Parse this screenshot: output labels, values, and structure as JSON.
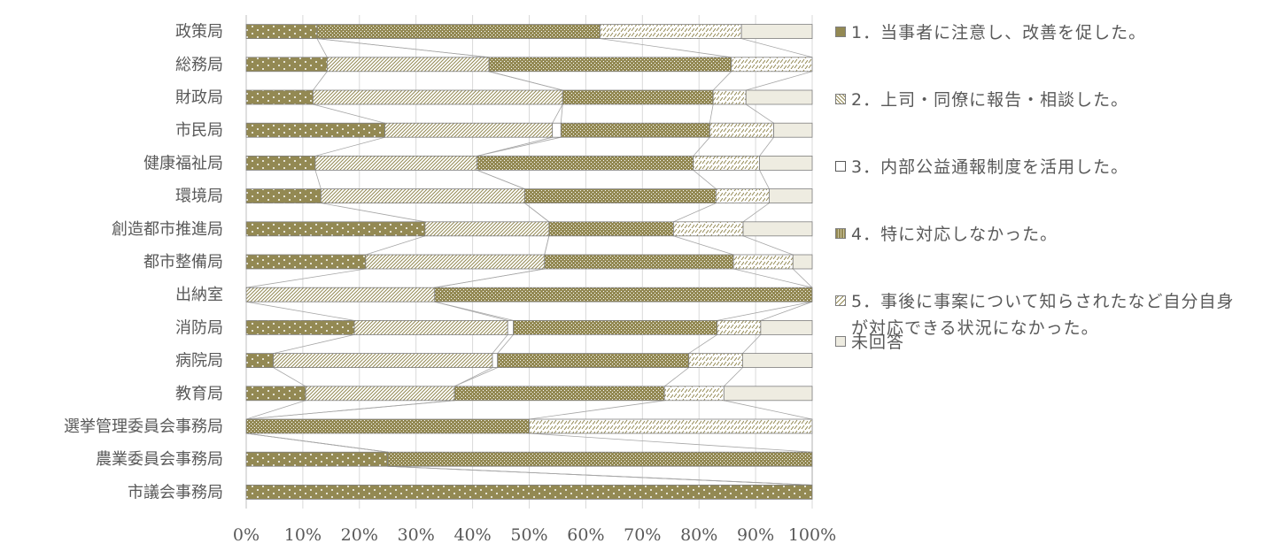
{
  "chart_data": {
    "type": "bar",
    "orientation": "horizontal",
    "stacked": "percent",
    "title": "",
    "xlabel": "",
    "ylabel": "",
    "xlim": [
      0,
      100
    ],
    "x_ticks": [
      "0%",
      "10%",
      "20%",
      "30%",
      "40%",
      "50%",
      "60%",
      "70%",
      "80%",
      "90%",
      "100%"
    ],
    "grid": true,
    "series_lines": true,
    "legend_position": "right",
    "categories": [
      "政策局",
      "総務局",
      "財政局",
      "市民局",
      "健康福祉局",
      "環境局",
      "創造都市推進局",
      "都市整備局",
      "出納室",
      "消防局",
      "病院局",
      "教育局",
      "選挙管理委員会事務局",
      "農業委員会事務局",
      "市議会事務局"
    ],
    "series": [
      {
        "name": "1．当事者に注意し、改善を促した。",
        "color": "#938953",
        "pattern": "dots",
        "values": [
          12.5,
          14.3,
          11.8,
          24.5,
          12.2,
          13.2,
          31.6,
          21.1,
          0,
          19.1,
          4.8,
          10.5,
          0,
          25,
          100
        ]
      },
      {
        "name": "2．上司・同僚に報告・相談した。",
        "color": "#938953",
        "pattern": "diag-light",
        "values": [
          0,
          28.6,
          44.1,
          29.6,
          28.6,
          36.0,
          21.9,
          31.6,
          33.3,
          27.1,
          38.7,
          26.3,
          0,
          0,
          0
        ]
      },
      {
        "name": "3．内部公益通報制度を活用した。",
        "color": "#ffffff",
        "pattern": "none",
        "values": [
          0,
          0,
          0,
          1.5,
          0,
          0,
          0,
          0,
          0,
          1.0,
          0.9,
          0,
          0,
          0,
          0
        ]
      },
      {
        "name": "4．特に対応しなかった。",
        "color": "#938953",
        "pattern": "grid-dense",
        "values": [
          50,
          42.8,
          26.6,
          26.3,
          38.2,
          33.8,
          22.0,
          33.4,
          66.7,
          36.0,
          33.8,
          37.1,
          50,
          75,
          0
        ]
      },
      {
        "name": "5．事後に事案について知らされたなど自分自身が対応できる状況になかった。",
        "color": "#938953",
        "pattern": "diag-dash",
        "values": [
          25,
          14.3,
          5.8,
          11.3,
          11.7,
          9.4,
          12.3,
          10.5,
          0,
          7.7,
          9.5,
          10.5,
          50,
          0,
          0
        ]
      },
      {
        "name": "未回答",
        "color": "#eeece1",
        "pattern": "solid",
        "values": [
          12.5,
          0,
          11.7,
          6.8,
          9.3,
          7.6,
          12.2,
          3.4,
          0,
          9.1,
          12.3,
          15.6,
          0,
          0,
          0
        ]
      }
    ]
  },
  "legend": {
    "items": [
      {
        "label": "1．当事者に注意し、改善を促した。",
        "icon": "dots-swatch-icon"
      },
      {
        "label": "2．上司・同僚に報告・相談した。",
        "icon": "diagonal-swatch-icon"
      },
      {
        "label": "3．内部公益通報制度を活用した。",
        "icon": "white-swatch-icon"
      },
      {
        "label": "4．特に対応しなかった。",
        "icon": "dense-grid-swatch-icon"
      },
      {
        "label": "5．事後に事案について知らされたなど自分自身が対応できる状況になかった。",
        "icon": "dash-swatch-icon"
      },
      {
        "label": "未回答",
        "icon": "beige-swatch-icon"
      }
    ]
  }
}
